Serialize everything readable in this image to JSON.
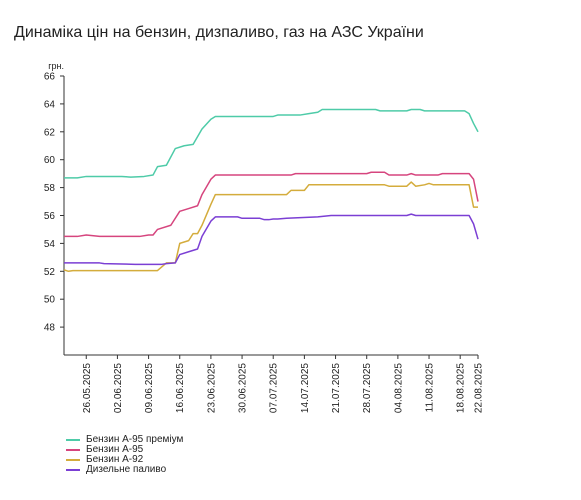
{
  "title": "Динаміка цін на бензин, дизпаливо, газ на АЗС України",
  "chart_data": {
    "type": "line",
    "ylabel": "грн.",
    "ylim": [
      46,
      66
    ],
    "yticks": [
      48,
      50,
      52,
      54,
      56,
      58,
      60,
      62,
      64,
      66
    ],
    "xlim": [
      "2025-05-21",
      "2025-08-22"
    ],
    "xticks": [
      "26.05.2025",
      "02.06.2025",
      "09.06.2025",
      "16.06.2025",
      "23.06.2025",
      "30.06.2025",
      "07.07.2025",
      "14.07.2025",
      "21.07.2025",
      "28.07.2025",
      "04.08.2025",
      "11.08.2025",
      "18.08.2025",
      "22.08.2025"
    ],
    "grid": false,
    "legend": "bottom-left",
    "series": [
      {
        "name": "Бензин А-95 преміум",
        "color": "#4ecba8",
        "points": [
          [
            "2025-05-21",
            58.7
          ],
          [
            "2025-05-24",
            58.7
          ],
          [
            "2025-05-26",
            58.8
          ],
          [
            "2025-06-03",
            58.8
          ],
          [
            "2025-06-05",
            58.75
          ],
          [
            "2025-06-08",
            58.8
          ],
          [
            "2025-06-10",
            58.9
          ],
          [
            "2025-06-11",
            59.5
          ],
          [
            "2025-06-13",
            59.6
          ],
          [
            "2025-06-15",
            60.8
          ],
          [
            "2025-06-17",
            61.0
          ],
          [
            "2025-06-19",
            61.1
          ],
          [
            "2025-06-21",
            62.2
          ],
          [
            "2025-06-23",
            62.9
          ],
          [
            "2025-06-24",
            63.1
          ],
          [
            "2025-07-07",
            63.1
          ],
          [
            "2025-07-08",
            63.2
          ],
          [
            "2025-07-13",
            63.2
          ],
          [
            "2025-07-15",
            63.3
          ],
          [
            "2025-07-17",
            63.4
          ],
          [
            "2025-07-18",
            63.6
          ],
          [
            "2025-07-30",
            63.6
          ],
          [
            "2025-07-31",
            63.5
          ],
          [
            "2025-08-06",
            63.5
          ],
          [
            "2025-08-07",
            63.6
          ],
          [
            "2025-08-09",
            63.6
          ],
          [
            "2025-08-10",
            63.5
          ],
          [
            "2025-08-19",
            63.5
          ],
          [
            "2025-08-20",
            63.3
          ],
          [
            "2025-08-21",
            62.6
          ],
          [
            "2025-08-22",
            62.0
          ]
        ]
      },
      {
        "name": "Бензин А-95",
        "color": "#d6457e",
        "points": [
          [
            "2025-05-21",
            54.5
          ],
          [
            "2025-05-24",
            54.5
          ],
          [
            "2025-05-26",
            54.6
          ],
          [
            "2025-05-29",
            54.5
          ],
          [
            "2025-06-07",
            54.5
          ],
          [
            "2025-06-09",
            54.6
          ],
          [
            "2025-06-10",
            54.6
          ],
          [
            "2025-06-11",
            55.0
          ],
          [
            "2025-06-14",
            55.3
          ],
          [
            "2025-06-16",
            56.3
          ],
          [
            "2025-06-18",
            56.5
          ],
          [
            "2025-06-20",
            56.7
          ],
          [
            "2025-06-21",
            57.5
          ],
          [
            "2025-06-23",
            58.6
          ],
          [
            "2025-06-24",
            58.9
          ],
          [
            "2025-07-11",
            58.9
          ],
          [
            "2025-07-12",
            59.0
          ],
          [
            "2025-07-28",
            59.0
          ],
          [
            "2025-07-29",
            59.1
          ],
          [
            "2025-08-01",
            59.1
          ],
          [
            "2025-08-02",
            58.9
          ],
          [
            "2025-08-06",
            58.9
          ],
          [
            "2025-08-07",
            59.0
          ],
          [
            "2025-08-08",
            58.9
          ],
          [
            "2025-08-13",
            58.9
          ],
          [
            "2025-08-14",
            59.0
          ],
          [
            "2025-08-20",
            59.0
          ],
          [
            "2025-08-21",
            58.6
          ],
          [
            "2025-08-22",
            57.0
          ]
        ]
      },
      {
        "name": "Бензин А-92",
        "color": "#d4ac3c",
        "points": [
          [
            "2025-05-21",
            52.1
          ],
          [
            "2025-05-22",
            52.0
          ],
          [
            "2025-05-23",
            52.05
          ],
          [
            "2025-06-11",
            52.05
          ],
          [
            "2025-06-13",
            52.6
          ],
          [
            "2025-06-15",
            52.6
          ],
          [
            "2025-06-16",
            54.0
          ],
          [
            "2025-06-18",
            54.2
          ],
          [
            "2025-06-19",
            54.7
          ],
          [
            "2025-06-20",
            54.7
          ],
          [
            "2025-06-21",
            55.3
          ],
          [
            "2025-06-23",
            56.8
          ],
          [
            "2025-06-24",
            57.5
          ],
          [
            "2025-07-06",
            57.5
          ],
          [
            "2025-07-07",
            57.5
          ],
          [
            "2025-07-10",
            57.5
          ],
          [
            "2025-07-11",
            57.8
          ],
          [
            "2025-07-14",
            57.8
          ],
          [
            "2025-07-15",
            58.2
          ],
          [
            "2025-08-01",
            58.2
          ],
          [
            "2025-08-02",
            58.1
          ],
          [
            "2025-08-06",
            58.1
          ],
          [
            "2025-08-07",
            58.4
          ],
          [
            "2025-08-08",
            58.1
          ],
          [
            "2025-08-10",
            58.2
          ],
          [
            "2025-08-11",
            58.3
          ],
          [
            "2025-08-12",
            58.2
          ],
          [
            "2025-08-20",
            58.2
          ],
          [
            "2025-08-21",
            56.6
          ],
          [
            "2025-08-22",
            56.6
          ]
        ]
      },
      {
        "name": "Дизельне паливо",
        "color": "#7b3fd4",
        "points": [
          [
            "2025-05-21",
            52.6
          ],
          [
            "2025-05-29",
            52.6
          ],
          [
            "2025-05-30",
            52.55
          ],
          [
            "2025-06-06",
            52.5
          ],
          [
            "2025-06-12",
            52.5
          ],
          [
            "2025-06-13",
            52.55
          ],
          [
            "2025-06-15",
            52.6
          ],
          [
            "2025-06-16",
            53.2
          ],
          [
            "2025-06-18",
            53.4
          ],
          [
            "2025-06-20",
            53.6
          ],
          [
            "2025-06-21",
            54.5
          ],
          [
            "2025-06-23",
            55.6
          ],
          [
            "2025-06-24",
            55.9
          ],
          [
            "2025-06-29",
            55.9
          ],
          [
            "2025-06-30",
            55.8
          ],
          [
            "2025-07-04",
            55.8
          ],
          [
            "2025-07-05",
            55.7
          ],
          [
            "2025-07-06",
            55.7
          ],
          [
            "2025-07-07",
            55.75
          ],
          [
            "2025-07-08",
            55.75
          ],
          [
            "2025-07-10",
            55.8
          ],
          [
            "2025-07-17",
            55.9
          ],
          [
            "2025-07-20",
            56.0
          ],
          [
            "2025-08-06",
            56.0
          ],
          [
            "2025-08-07",
            56.1
          ],
          [
            "2025-08-08",
            56.0
          ],
          [
            "2025-08-20",
            56.0
          ],
          [
            "2025-08-21",
            55.4
          ],
          [
            "2025-08-22",
            54.3
          ]
        ]
      }
    ]
  }
}
